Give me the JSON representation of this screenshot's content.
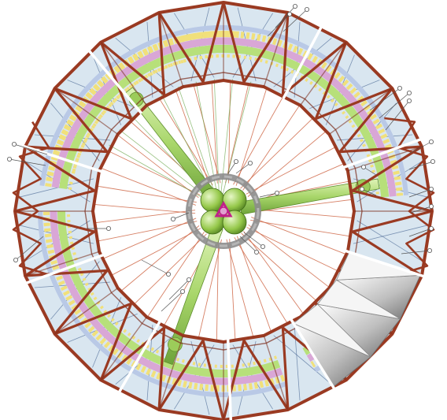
{
  "diagram": {
    "kind": "ring-structure-cross-section",
    "has_visible_text": false,
    "palette": {
      "truss": "#9a3a22",
      "truss_dark": "#7a2a18",
      "panel_fill": "#d9e6f0",
      "panel_lines": "#3a5a8a",
      "habitat_green": "#b7e07a",
      "habitat_pink": "#d9a7d6",
      "habitat_yellow": "#f1e07a",
      "habitat_blue": "#b9c9e6",
      "spoke": "#d06a4a",
      "inner_spoke": "#6aa64a",
      "hub_grey": "#8c8c8c",
      "hub_magenta": "#c0208a",
      "mirror_grey": "#bdbdbd",
      "callout": "#555555"
    },
    "segments": {
      "count": 9,
      "mirror_segment_present": true
    },
    "hub": {
      "lobes": 4,
      "tubes": 3
    }
  }
}
